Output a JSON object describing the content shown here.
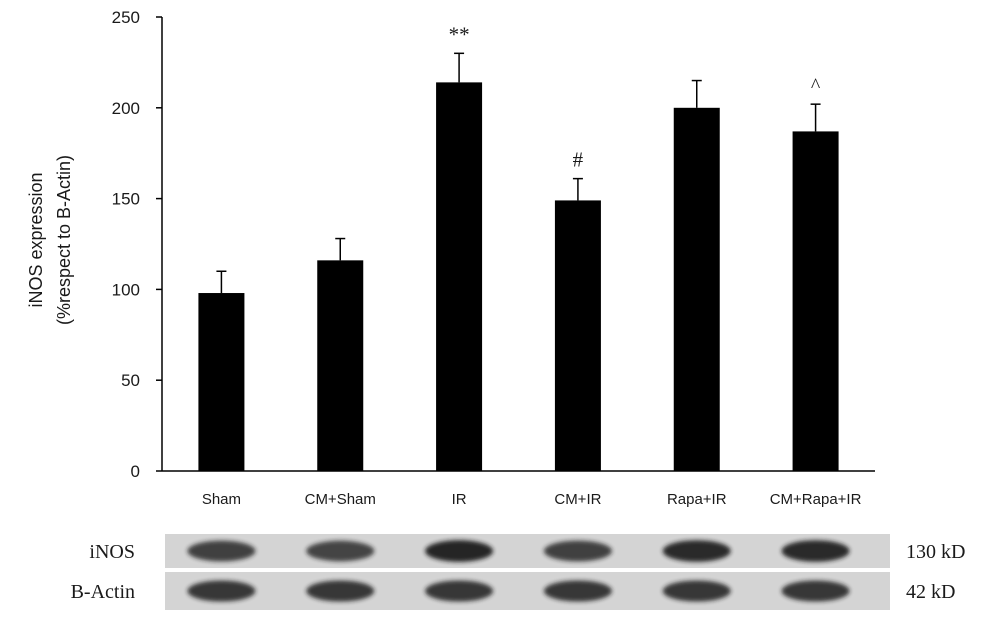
{
  "chart_data": {
    "type": "bar",
    "title": "",
    "xlabel": "",
    "ylabel_lines": [
      "iNOS expression",
      "(%respect to B-Actin)"
    ],
    "ylim": [
      0,
      250
    ],
    "yticks": [
      0,
      50,
      100,
      150,
      200,
      250
    ],
    "grid": false,
    "categories": [
      "Sham",
      "CM+Sham",
      "IR",
      "CM+IR",
      "Rapa+IR",
      "CM+Rapa+IR"
    ],
    "values": [
      98,
      116,
      214,
      149,
      200,
      187
    ],
    "errors": [
      12,
      12,
      16,
      12,
      15,
      15
    ],
    "annotations": [
      "",
      "",
      "**",
      "#",
      "",
      "^"
    ],
    "bar_color": "#000000"
  },
  "blot": {
    "rows": [
      {
        "label": "iNOS",
        "size": "130 kD",
        "intensity": [
          0.8,
          0.78,
          0.95,
          0.8,
          0.92,
          0.92
        ]
      },
      {
        "label": "B-Actin",
        "size": "42 kD",
        "intensity": [
          0.85,
          0.85,
          0.85,
          0.85,
          0.85,
          0.85
        ]
      }
    ],
    "background": "#d4d4d4",
    "band_color": "#1c1c1c"
  }
}
